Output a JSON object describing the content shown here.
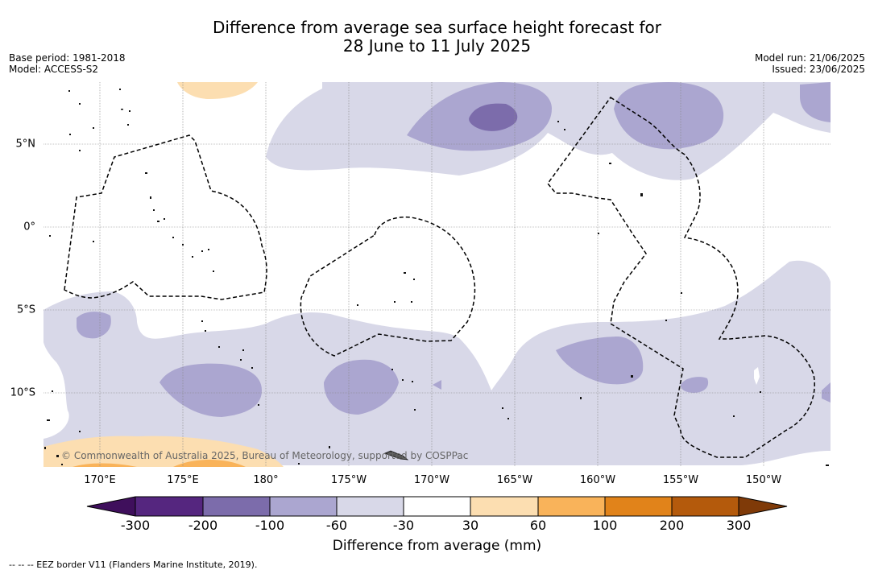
{
  "title": {
    "line1": "Difference from average sea surface height forecast for",
    "line2": "28 June to 11 July 2025"
  },
  "meta_left": {
    "base_period": "Base period: 1981-2018",
    "model": "Model: ACCESS-S2"
  },
  "meta_right": {
    "model_run": "Model run: 21/06/2025",
    "issued": "Issued: 23/06/2025"
  },
  "map": {
    "lon_ticks": [
      "170°E",
      "175°E",
      "180°",
      "175°W",
      "170°W",
      "165°W",
      "160°W",
      "155°W",
      "150°W"
    ],
    "lat_ticks": [
      "5°N",
      "0°",
      "5°S",
      "10°S"
    ],
    "copyright": "© Commonwealth of Australia 2025, Bureau of Meteorology, supported by COSPPac",
    "background_color": "#ffffff",
    "gridline_color": "#888888"
  },
  "colorbar": {
    "title": "Difference from average (mm)",
    "labels": [
      "-300",
      "-200",
      "-100",
      "-60",
      "-30",
      "30",
      "60",
      "100",
      "200",
      "300"
    ],
    "colors": [
      "#3f0f5c",
      "#55267f",
      "#7c6cab",
      "#aba6d0",
      "#d8d8e8",
      "#ffffff",
      "#fcdeb1",
      "#f9b35a",
      "#e1831a",
      "#b45a0c",
      "#7f3a08"
    ]
  },
  "footnote": "-- -- -- EEZ border V11 (Flanders Marine Institute, 2019)."
}
